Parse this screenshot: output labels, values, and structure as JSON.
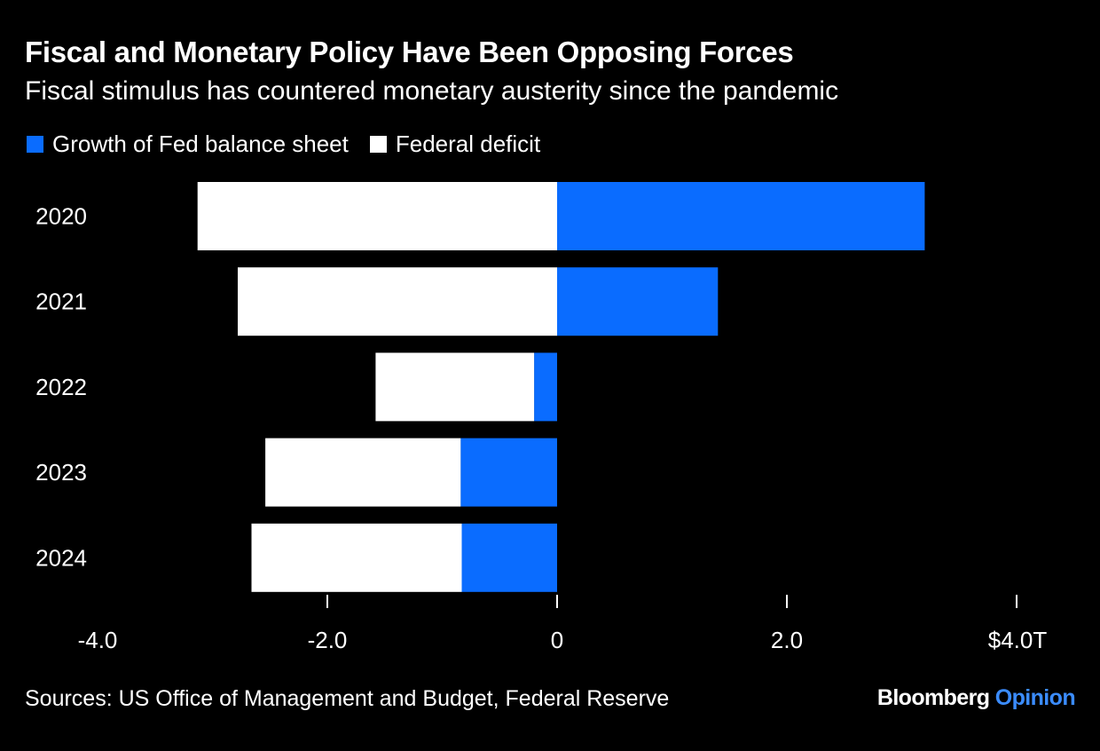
{
  "chart_data": {
    "type": "bar",
    "orientation": "horizontal",
    "stacked": true,
    "title": "Fiscal and Monetary Policy Have Been Opposing Forces",
    "subtitle": "Fiscal stimulus has countered monetary austerity since the pandemic",
    "categories": [
      "2020",
      "2021",
      "2022",
      "2023",
      "2024"
    ],
    "series": [
      {
        "name": "Growth of Fed balance sheet",
        "color": "#0a6cff",
        "values": [
          3.2,
          1.4,
          -0.2,
          -0.84,
          -0.83
        ]
      },
      {
        "name": "Federal deficit",
        "color": "#ffffff",
        "values": [
          -3.13,
          -2.78,
          -1.38,
          -1.7,
          -1.83
        ]
      }
    ],
    "xlim": [
      -4.0,
      4.0
    ],
    "x_ticks": [
      -4.0,
      -2.0,
      0,
      2.0,
      4.0
    ],
    "x_tick_labels": [
      "-4.0",
      "-2.0",
      "0",
      "2.0",
      "$4.0T"
    ],
    "grid": false,
    "legend_position": "top-left",
    "source": "Sources: US Office of Management and Budget, Federal Reserve"
  },
  "brand": {
    "name": "Bloomberg",
    "section": "Opinion"
  }
}
